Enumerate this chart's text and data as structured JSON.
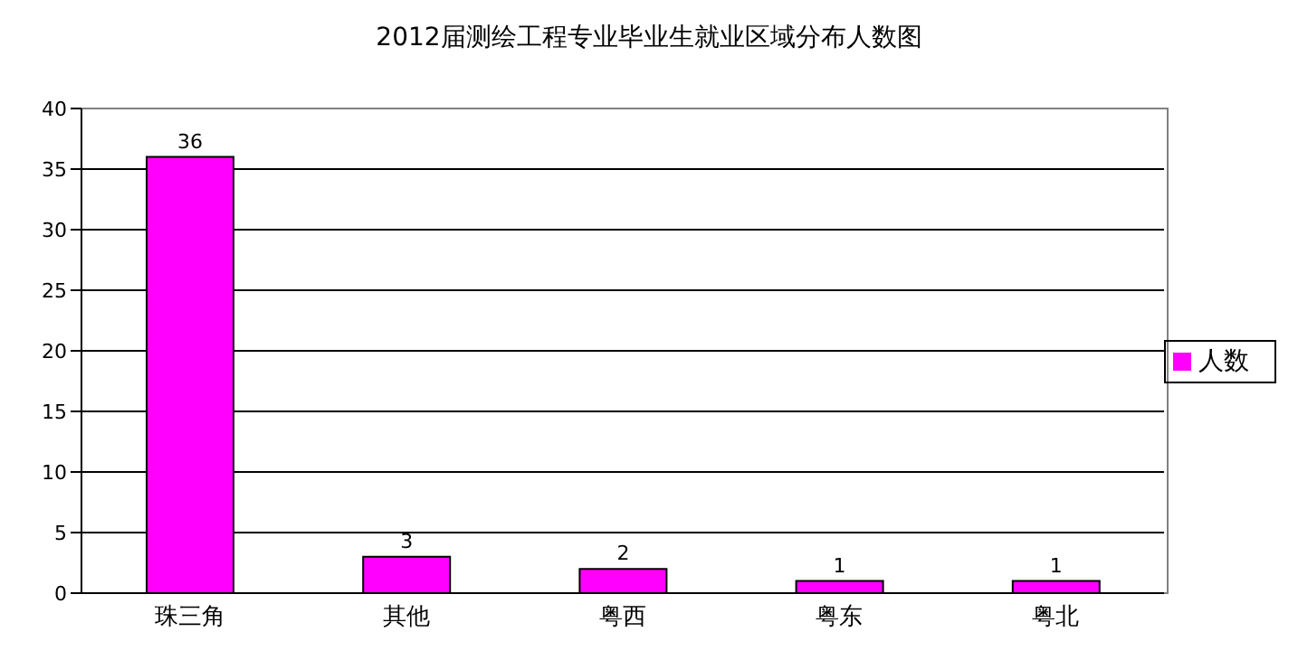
{
  "chart_data": {
    "type": "bar",
    "title": "2012届测绘工程专业毕业生就业区域分布人数图",
    "categories": [
      "珠三角",
      "其他",
      "粤西",
      "粤东",
      "粤北"
    ],
    "series": [
      {
        "name": "人数",
        "color": "#ff00ff",
        "values": [
          36,
          3,
          2,
          1,
          1
        ]
      }
    ],
    "ylim": [
      0,
      40
    ],
    "yticks": [
      0,
      5,
      10,
      15,
      20,
      25,
      30,
      35,
      40
    ],
    "grid": "y",
    "legend": "right",
    "data_labels": true
  }
}
